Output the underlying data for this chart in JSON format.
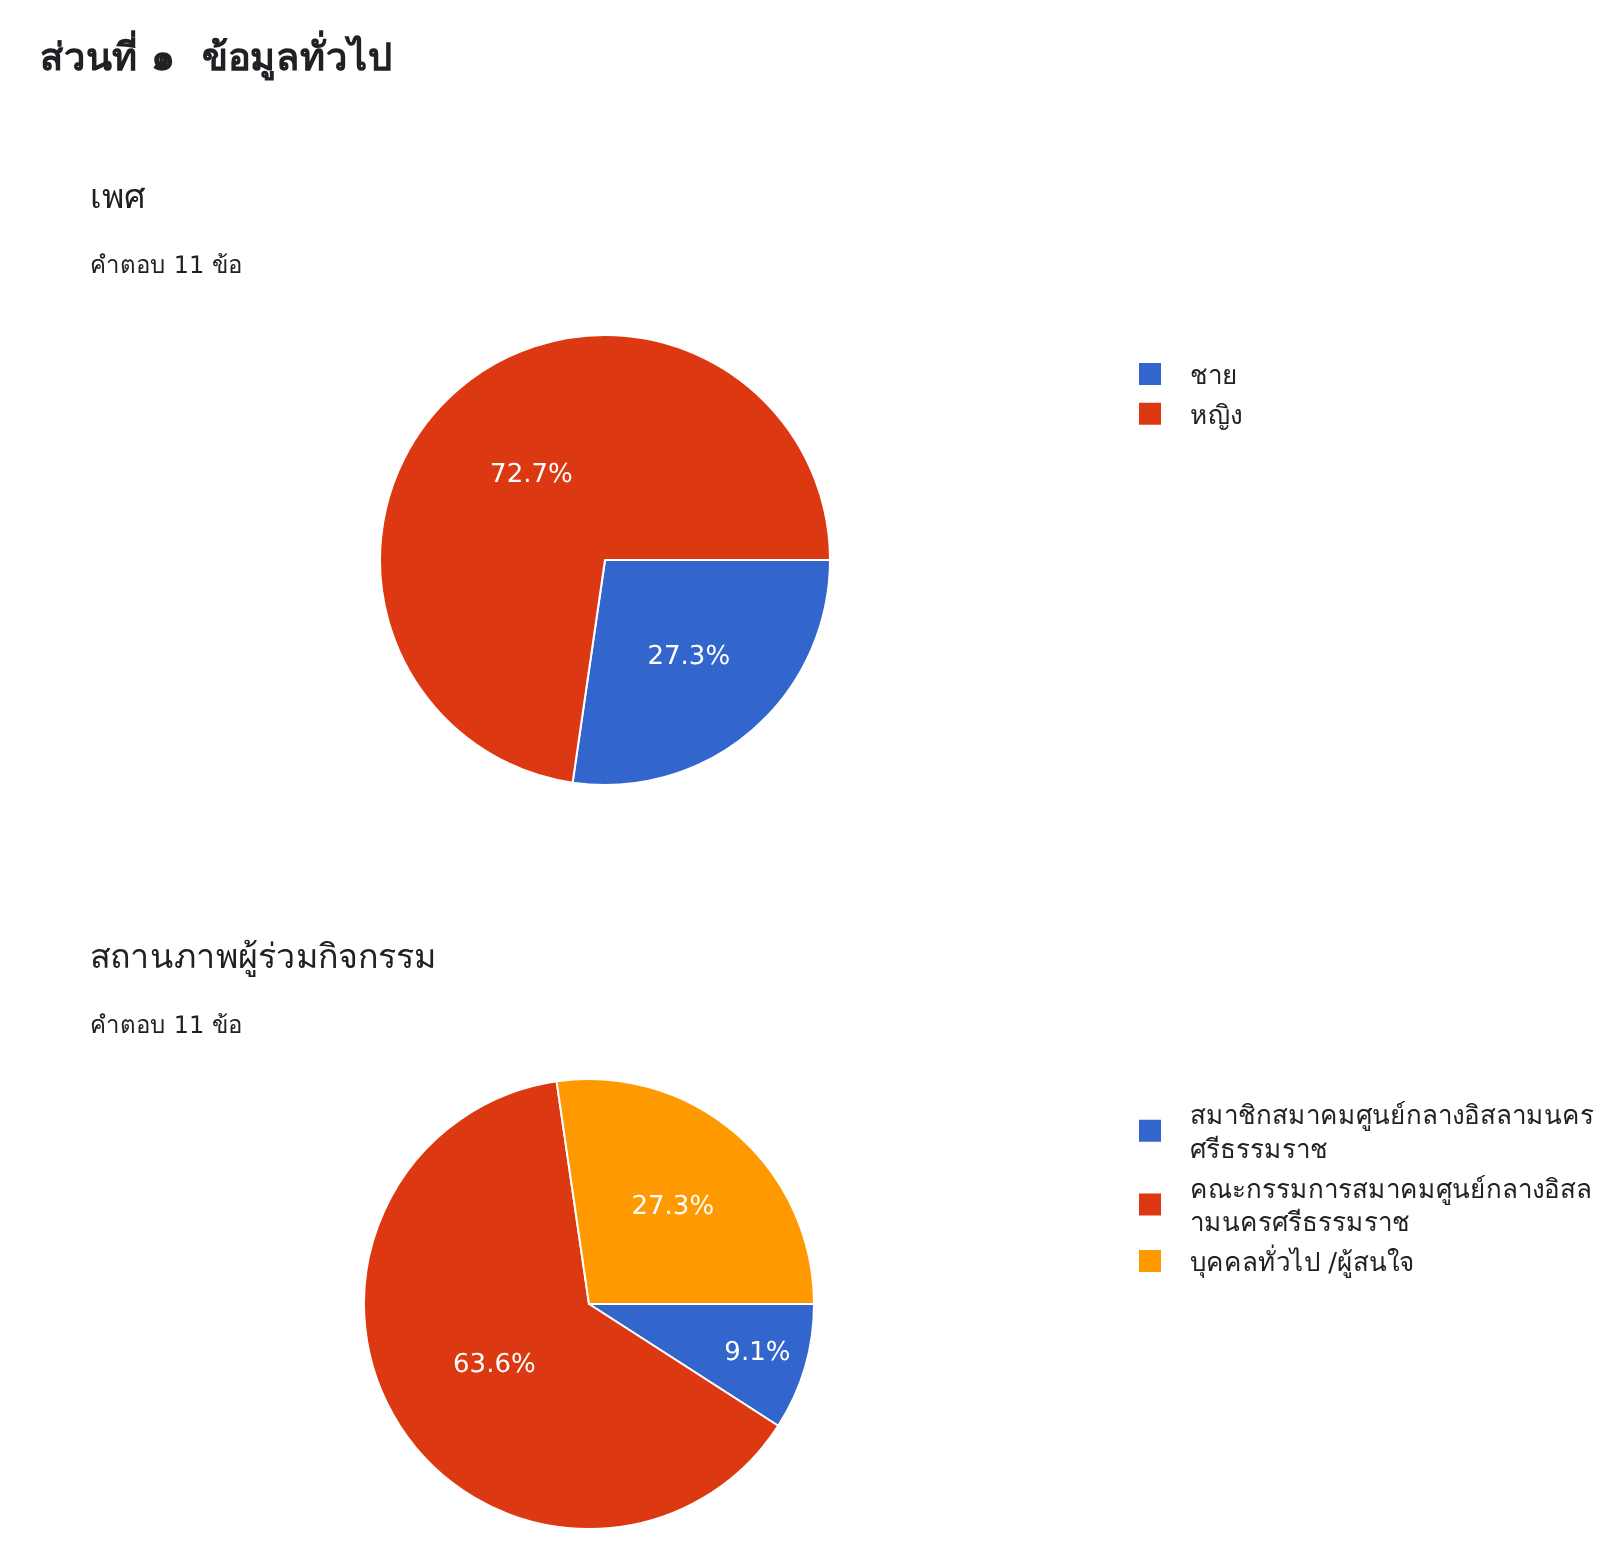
{
  "chart_data": [
    {
      "type": "pie",
      "title": "เพศ",
      "subtitle": "คำตอบ 11 ข้อ",
      "annotations": [
        "ส่วนที่ ๑  ข้อมูลทั่วไป"
      ],
      "categories": [
        "ชาย",
        "หญิง"
      ],
      "values": [
        27.3,
        72.7
      ],
      "colors": [
        "#3366cc",
        "#dc3912"
      ],
      "value_labels": [
        "27.3%",
        "72.7%"
      ],
      "legend": "right"
    },
    {
      "type": "pie",
      "title": "สถานภาพผู้ร่วมกิจกรรม",
      "subtitle": "คำตอบ 11 ข้อ",
      "categories": [
        "สมาชิกสมาคมศูนย์กลางอิสลามนครศรีธรรมราช",
        "คณะกรรมการสมาคมศูนย์กลางอิสลามนครศรีธรรมราช",
        "บุคคลทั่วไป /ผู้สนใจ"
      ],
      "values": [
        9.1,
        63.6,
        27.3
      ],
      "colors": [
        "#3366cc",
        "#dc3912",
        "#ff9900"
      ],
      "value_labels": [
        "9.1%",
        "63.6%",
        "27.3%"
      ],
      "legend": "right"
    }
  ]
}
